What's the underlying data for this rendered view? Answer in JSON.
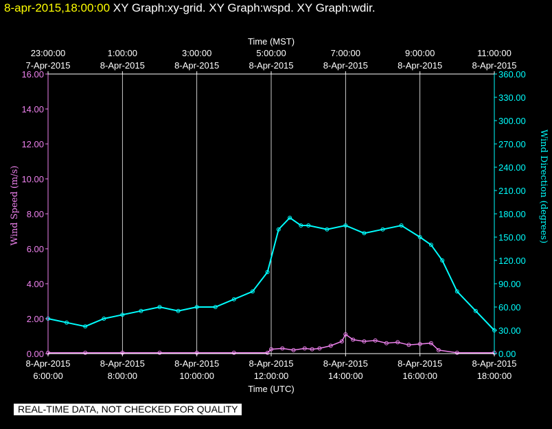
{
  "header": {
    "timestamp": "8-apr-2015,18:00:00",
    "graphs": [
      "XY Graph:xy-grid.",
      "XY Graph:wspd.",
      "XY Graph:wdir."
    ]
  },
  "disclaimer": "REAL-TIME DATA, NOT CHECKED FOR QUALITY",
  "chart_data": {
    "type": "scatter",
    "top_axis": {
      "label": "Time (MST)",
      "ticks": [
        {
          "time": "23:00:00",
          "date": "7-Apr-2015"
        },
        {
          "time": "1:00:00",
          "date": "8-Apr-2015"
        },
        {
          "time": "3:00:00",
          "date": "8-Apr-2015"
        },
        {
          "time": "5:00:00",
          "date": "8-Apr-2015"
        },
        {
          "time": "7:00:00",
          "date": "8-Apr-2015"
        },
        {
          "time": "9:00:00",
          "date": "8-Apr-2015"
        },
        {
          "time": "11:00:00",
          "date": "8-Apr-2015"
        }
      ]
    },
    "bottom_axis": {
      "label": "Time (UTC)",
      "ticks": [
        {
          "date": "8-Apr-2015",
          "time": "6:00:00"
        },
        {
          "date": "8-Apr-2015",
          "time": "8:00:00"
        },
        {
          "date": "8-Apr-2015",
          "time": "10:00:00"
        },
        {
          "date": "8-Apr-2015",
          "time": "12:00:00"
        },
        {
          "date": "8-Apr-2015",
          "time": "14:00:00"
        },
        {
          "date": "8-Apr-2015",
          "time": "16:00:00"
        },
        {
          "date": "8-Apr-2015",
          "time": "18:00:00"
        }
      ],
      "x_range_utc_hours": [
        6,
        18
      ]
    },
    "left_axis": {
      "label": "Wind Speed (m/s)",
      "range": [
        0,
        16
      ],
      "ticks": [
        "0.00",
        "2.00",
        "4.00",
        "6.00",
        "8.00",
        "10.00",
        "12.00",
        "14.00",
        "16.00"
      ]
    },
    "right_axis": {
      "label": "Wind Direction (degrees)",
      "range": [
        0,
        360
      ],
      "ticks": [
        "0.00",
        "30.00",
        "60.00",
        "90.00",
        "120.00",
        "150.00",
        "180.00",
        "210.00",
        "240.00",
        "270.00",
        "300.00",
        "330.00",
        "360.00"
      ]
    },
    "grid": "vertical lines at each time tick",
    "series": [
      {
        "name": "Wind Speed",
        "axis": "left",
        "color": "#ee82ee",
        "points": [
          [
            6.0,
            0.05
          ],
          [
            7.0,
            0.05
          ],
          [
            8.0,
            0.05
          ],
          [
            9.0,
            0.05
          ],
          [
            10.0,
            0.05
          ],
          [
            11.0,
            0.05
          ],
          [
            11.9,
            0.05
          ],
          [
            12.0,
            0.25
          ],
          [
            12.3,
            0.3
          ],
          [
            12.6,
            0.2
          ],
          [
            12.9,
            0.3
          ],
          [
            13.1,
            0.25
          ],
          [
            13.3,
            0.3
          ],
          [
            13.6,
            0.45
          ],
          [
            13.9,
            0.7
          ],
          [
            14.0,
            1.1
          ],
          [
            14.2,
            0.8
          ],
          [
            14.5,
            0.7
          ],
          [
            14.8,
            0.75
          ],
          [
            15.1,
            0.6
          ],
          [
            15.4,
            0.65
          ],
          [
            15.7,
            0.5
          ],
          [
            16.0,
            0.55
          ],
          [
            16.3,
            0.6
          ],
          [
            16.5,
            0.2
          ],
          [
            17.0,
            0.05
          ],
          [
            18.0,
            0.05
          ]
        ]
      },
      {
        "name": "Wind Direction",
        "axis": "right",
        "color": "#00ffff",
        "points": [
          [
            6.0,
            45
          ],
          [
            6.5,
            40
          ],
          [
            7.0,
            35
          ],
          [
            7.5,
            45
          ],
          [
            8.0,
            50
          ],
          [
            8.5,
            55
          ],
          [
            9.0,
            60
          ],
          [
            9.5,
            55
          ],
          [
            10.0,
            60
          ],
          [
            10.5,
            60
          ],
          [
            11.0,
            70
          ],
          [
            11.5,
            80
          ],
          [
            11.9,
            105
          ],
          [
            12.2,
            160
          ],
          [
            12.5,
            175
          ],
          [
            12.8,
            165
          ],
          [
            13.0,
            165
          ],
          [
            13.5,
            160
          ],
          [
            14.0,
            165
          ],
          [
            14.5,
            155
          ],
          [
            15.0,
            160
          ],
          [
            15.5,
            165
          ],
          [
            16.0,
            150
          ],
          [
            16.3,
            140
          ],
          [
            16.6,
            120
          ],
          [
            17.0,
            80
          ],
          [
            17.5,
            55
          ],
          [
            18.0,
            30
          ]
        ]
      }
    ]
  }
}
